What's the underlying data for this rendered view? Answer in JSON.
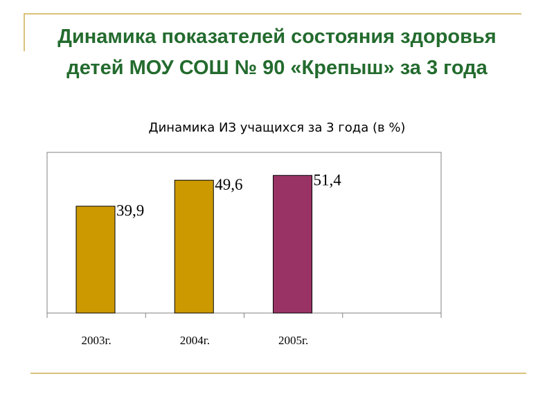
{
  "slide": {
    "title_line1": "Динамика показателей состояния здоровья",
    "title_line2": "детей МОУ СОШ № 90 «Крепыш» за 3 года"
  },
  "colors": {
    "title": "#236b2e",
    "rule": "#d9c27a",
    "bar_gold": "#cc9900",
    "bar_maroon": "#993366",
    "plot_border": "#808080"
  },
  "chart_data": {
    "type": "bar",
    "title": "Динамика ИЗ учащихся за 3 года (в %)",
    "categories": [
      "2003г.",
      "2004г.",
      "2005г.",
      ""
    ],
    "values": [
      39.9,
      49.6,
      51.4,
      null
    ],
    "data_labels": [
      "39,9",
      "49,6",
      "51,4",
      ""
    ],
    "bar_colors": [
      "#cc9900",
      "#cc9900",
      "#993366",
      null
    ],
    "ylim": [
      0,
      60
    ],
    "grid": false,
    "legend": "none",
    "xlabel": "",
    "ylabel": ""
  }
}
